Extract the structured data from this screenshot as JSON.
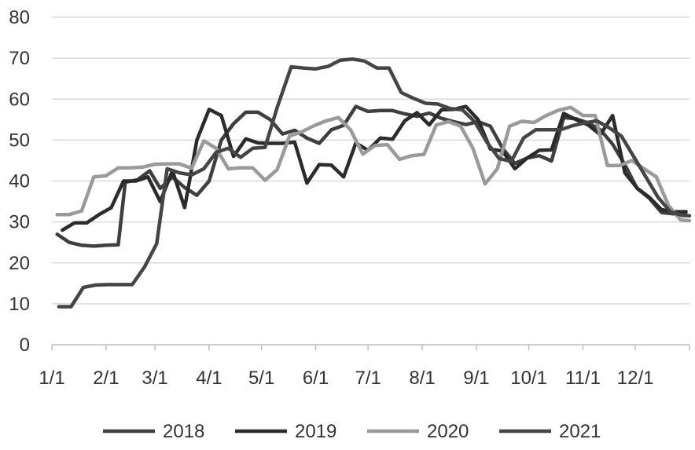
{
  "chart_data": {
    "type": "line",
    "title": "",
    "xlabel": "",
    "ylabel": "",
    "ylim": [
      0,
      80
    ],
    "yticks": [
      0,
      10,
      20,
      30,
      40,
      50,
      60,
      70,
      80
    ],
    "xlim": [
      0,
      365
    ],
    "xticks": [
      {
        "label": "1/1",
        "day": 0
      },
      {
        "label": "2/1",
        "day": 31
      },
      {
        "label": "3/1",
        "day": 59
      },
      {
        "label": "4/1",
        "day": 90
      },
      {
        "label": "5/1",
        "day": 120
      },
      {
        "label": "6/1",
        "day": 151
      },
      {
        "label": "7/1",
        "day": 181
      },
      {
        "label": "8/1",
        "day": 212
      },
      {
        "label": "9/1",
        "day": 243
      },
      {
        "label": "10/1",
        "day": 273
      },
      {
        "label": "11/1",
        "day": 304
      },
      {
        "label": "12/1",
        "day": 334
      }
    ],
    "grid": "horizontal",
    "legend_position": "bottom",
    "series": [
      {
        "name": "2018",
        "color": "#3f3f3f",
        "points": [
          [
            3,
            27
          ],
          [
            10,
            25
          ],
          [
            17,
            24.3
          ],
          [
            24,
            24.1
          ],
          [
            31,
            24.3
          ],
          [
            38,
            24.4
          ],
          [
            42,
            39.7
          ],
          [
            49,
            40.3
          ],
          [
            56,
            42.5
          ],
          [
            62,
            38.2
          ],
          [
            69,
            41
          ],
          [
            76,
            38.4
          ],
          [
            83,
            36.5
          ],
          [
            90,
            40
          ],
          [
            97,
            50
          ],
          [
            104,
            54
          ],
          [
            111,
            56.8
          ],
          [
            118,
            56.8
          ],
          [
            125,
            55
          ],
          [
            132,
            51.5
          ],
          [
            139,
            52.4
          ],
          [
            146,
            50.5
          ],
          [
            153,
            49.2
          ],
          [
            160,
            52.5
          ],
          [
            167,
            53.6
          ],
          [
            174,
            58.2
          ],
          [
            181,
            57
          ],
          [
            188,
            57.2
          ],
          [
            195,
            57.2
          ],
          [
            202,
            56.4
          ],
          [
            209,
            55.8
          ],
          [
            216,
            56.6
          ],
          [
            223,
            55.3
          ],
          [
            230,
            54.5
          ],
          [
            237,
            53.8
          ],
          [
            244,
            54.5
          ],
          [
            251,
            53.4
          ],
          [
            258,
            48
          ],
          [
            265,
            44.3
          ],
          [
            272,
            45.6
          ],
          [
            279,
            46.2
          ],
          [
            286,
            44.9
          ],
          [
            293,
            55.5
          ],
          [
            300,
            55.2
          ],
          [
            307,
            54.2
          ],
          [
            314,
            52.5
          ],
          [
            321,
            49
          ],
          [
            328,
            44
          ],
          [
            335,
            38.2
          ],
          [
            342,
            35.8
          ],
          [
            349,
            32.3
          ],
          [
            356,
            32
          ],
          [
            363,
            31.8
          ]
        ]
      },
      {
        "name": "2019",
        "color": "#2b2b2b",
        "points": [
          [
            6,
            28
          ],
          [
            13,
            29.8
          ],
          [
            20,
            29.8
          ],
          [
            27,
            31.8
          ],
          [
            34,
            33.5
          ],
          [
            41,
            40
          ],
          [
            48,
            40
          ],
          [
            55,
            41
          ],
          [
            62,
            35
          ],
          [
            69,
            42.5
          ],
          [
            76,
            33.5
          ],
          [
            83,
            50
          ],
          [
            90,
            57.5
          ],
          [
            97,
            56
          ],
          [
            104,
            46
          ],
          [
            111,
            50.3
          ],
          [
            118,
            49.3
          ],
          [
            125,
            49.2
          ],
          [
            132,
            49.2
          ],
          [
            139,
            49.5
          ],
          [
            146,
            39.5
          ],
          [
            153,
            44
          ],
          [
            160,
            43.9
          ],
          [
            167,
            41
          ],
          [
            174,
            49.3
          ],
          [
            181,
            47.5
          ],
          [
            188,
            50.5
          ],
          [
            195,
            50.2
          ],
          [
            202,
            54.7
          ],
          [
            209,
            56.7
          ],
          [
            216,
            53.7
          ],
          [
            223,
            57.4
          ],
          [
            230,
            57.5
          ],
          [
            237,
            58.2
          ],
          [
            244,
            55
          ],
          [
            251,
            47.8
          ],
          [
            258,
            47.3
          ],
          [
            265,
            43
          ],
          [
            272,
            45.6
          ],
          [
            279,
            47.5
          ],
          [
            286,
            47.6
          ],
          [
            293,
            56.5
          ],
          [
            300,
            55
          ],
          [
            307,
            53.7
          ],
          [
            314,
            51.3
          ],
          [
            321,
            56
          ],
          [
            328,
            42
          ],
          [
            335,
            38.3
          ],
          [
            342,
            36
          ],
          [
            349,
            33
          ],
          [
            356,
            32.5
          ],
          [
            363,
            32.5
          ]
        ]
      },
      {
        "name": "2020",
        "color": "#9a9a9a",
        "points": [
          [
            3,
            31.8
          ],
          [
            10,
            31.8
          ],
          [
            17,
            32.7
          ],
          [
            24,
            41
          ],
          [
            31,
            41.3
          ],
          [
            38,
            43.2
          ],
          [
            45,
            43.2
          ],
          [
            52,
            43.4
          ],
          [
            59,
            44.1
          ],
          [
            66,
            44.2
          ],
          [
            73,
            44.2
          ],
          [
            80,
            43.1
          ],
          [
            87,
            49.8
          ],
          [
            94,
            48
          ],
          [
            101,
            43
          ],
          [
            108,
            43.2
          ],
          [
            115,
            43.2
          ],
          [
            122,
            40.2
          ],
          [
            129,
            42.8
          ],
          [
            136,
            51
          ],
          [
            143,
            52
          ],
          [
            150,
            53.5
          ],
          [
            157,
            54.7
          ],
          [
            164,
            55.5
          ],
          [
            171,
            52.5
          ],
          [
            178,
            46.6
          ],
          [
            185,
            48.7
          ],
          [
            192,
            48.9
          ],
          [
            199,
            45.3
          ],
          [
            206,
            46.2
          ],
          [
            213,
            46.5
          ],
          [
            220,
            53.7
          ],
          [
            227,
            54.5
          ],
          [
            234,
            53.4
          ],
          [
            241,
            48
          ],
          [
            248,
            39.3
          ],
          [
            255,
            43
          ],
          [
            262,
            53.4
          ],
          [
            269,
            54.6
          ],
          [
            276,
            54.3
          ],
          [
            283,
            56
          ],
          [
            290,
            57.3
          ],
          [
            297,
            58
          ],
          [
            304,
            56
          ],
          [
            311,
            56
          ],
          [
            318,
            43.8
          ],
          [
            325,
            43.8
          ],
          [
            332,
            45
          ],
          [
            339,
            43
          ],
          [
            346,
            41
          ],
          [
            353,
            34
          ],
          [
            360,
            30.5
          ],
          [
            365,
            30.3
          ]
        ]
      },
      {
        "name": "2021",
        "color": "#454545",
        "points": [
          [
            4,
            9.3
          ],
          [
            11,
            9.3
          ],
          [
            18,
            14
          ],
          [
            25,
            14.6
          ],
          [
            32,
            14.7
          ],
          [
            39,
            14.7
          ],
          [
            46,
            14.7
          ],
          [
            53,
            19
          ],
          [
            60,
            24.7
          ],
          [
            66,
            43
          ],
          [
            73,
            42
          ],
          [
            80,
            41.5
          ],
          [
            87,
            43
          ],
          [
            94,
            47
          ],
          [
            101,
            48
          ],
          [
            108,
            45.8
          ],
          [
            115,
            48
          ],
          [
            122,
            48.2
          ],
          [
            129,
            58
          ],
          [
            137,
            67.9
          ],
          [
            144,
            67.6
          ],
          [
            151,
            67.4
          ],
          [
            158,
            68
          ],
          [
            165,
            69.5
          ],
          [
            172,
            69.8
          ],
          [
            179,
            69.3
          ],
          [
            186,
            67.6
          ],
          [
            193,
            67.6
          ],
          [
            200,
            61.6
          ],
          [
            207,
            60.2
          ],
          [
            214,
            59
          ],
          [
            221,
            58.8
          ],
          [
            228,
            57.7
          ],
          [
            235,
            57.4
          ],
          [
            242,
            54.5
          ],
          [
            249,
            49.5
          ],
          [
            256,
            45.5
          ],
          [
            263,
            44.8
          ],
          [
            270,
            50.5
          ],
          [
            277,
            52.5
          ],
          [
            284,
            52.5
          ],
          [
            291,
            52.5
          ],
          [
            298,
            53.5
          ],
          [
            305,
            54.2
          ],
          [
            312,
            54.7
          ],
          [
            319,
            53
          ],
          [
            326,
            51
          ],
          [
            333,
            46
          ],
          [
            340,
            41
          ],
          [
            347,
            36
          ],
          [
            354,
            32.5
          ],
          [
            361,
            31.6
          ],
          [
            365,
            31.5
          ]
        ]
      }
    ]
  }
}
